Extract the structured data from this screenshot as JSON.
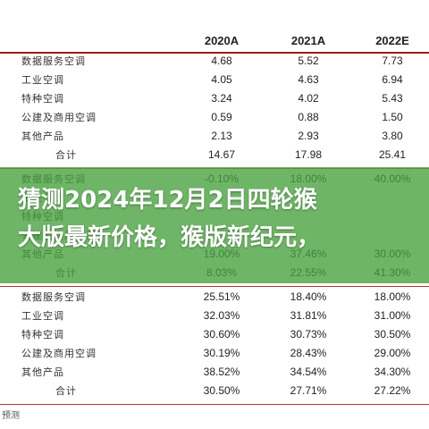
{
  "headers": [
    "2020A",
    "2021A",
    "2022E"
  ],
  "block1": [
    {
      "label": "数据服务空调",
      "v": [
        "4.68",
        "5.52",
        "7.73"
      ]
    },
    {
      "label": "工业空调",
      "v": [
        "4.05",
        "4.63",
        "6.94"
      ]
    },
    {
      "label": "特种空调",
      "v": [
        "3.24",
        "4.02",
        "5.43"
      ]
    },
    {
      "label": "公建及商用空调",
      "v": [
        "0.59",
        "0.88",
        "1.50"
      ]
    },
    {
      "label": "其他产品",
      "v": [
        "2.13",
        "2.93",
        "3.80"
      ]
    },
    {
      "label": "合计",
      "v": [
        "14.67",
        "17.98",
        "25.41"
      ]
    }
  ],
  "block2": [
    {
      "label": "数据服务空调",
      "v": [
        "-0.10%",
        "18.00%",
        "40.00%"
      ]
    },
    {
      "label": "工业空调",
      "v": [
        "",
        "",
        ""
      ]
    },
    {
      "label": "特种空调",
      "v": [
        "",
        "",
        ""
      ]
    },
    {
      "label": "公建及商用空调",
      "v": [
        "",
        "",
        ""
      ]
    },
    {
      "label": "其他产品",
      "v": [
        "19.00%",
        "37.46%",
        "30.00%"
      ]
    },
    {
      "label": "合计",
      "v": [
        "8.03%",
        "22.55%",
        "41.30%"
      ]
    }
  ],
  "block3": [
    {
      "label": "数据服务空调",
      "v": [
        "25.51%",
        "18.40%",
        "18.00%"
      ]
    },
    {
      "label": "工业空调",
      "v": [
        "32.03%",
        "31.81%",
        "31.00%"
      ]
    },
    {
      "label": "特种空调",
      "v": [
        "30.60%",
        "30.73%",
        "30.50%"
      ]
    },
    {
      "label": "公建及商用空调",
      "v": [
        "30.19%",
        "28.43%",
        "29.00%"
      ]
    },
    {
      "label": "其他产品",
      "v": [
        "38.52%",
        "34.54%",
        "34.30%"
      ]
    },
    {
      "label": "合计",
      "v": [
        "30.50%",
        "27.71%",
        "27.22%"
      ]
    }
  ],
  "overlay": {
    "line1": "猜测2024年12月2日四轮猴",
    "line2": "大版最新价格，猴版新纪元，"
  },
  "footer": "预测"
}
